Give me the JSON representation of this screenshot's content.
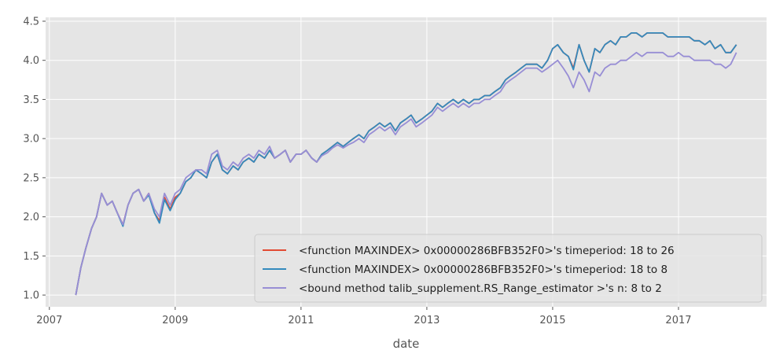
{
  "chart_data": {
    "type": "line",
    "title": "",
    "xlabel": "date",
    "ylabel": "",
    "xlim": [
      2006.94,
      2018.4
    ],
    "ylim": [
      0.85,
      4.55
    ],
    "x_ticks": [
      2007,
      2009,
      2011,
      2013,
      2015,
      2017
    ],
    "x_tick_labels": [
      "2007",
      "2009",
      "2011",
      "2013",
      "2015",
      "2017"
    ],
    "y_ticks": [
      1.0,
      1.5,
      2.0,
      2.5,
      3.0,
      3.5,
      4.0,
      4.5
    ],
    "y_tick_labels": [
      "1.0",
      "1.5",
      "2.0",
      "2.5",
      "3.0",
      "3.5",
      "4.0",
      "4.5"
    ],
    "grid": true,
    "legend_position": "bottom-right",
    "background": "#e5e5e5",
    "series": [
      {
        "name": "<function MAXINDEX> 0x00000286BFB352F0>'s timeperiod: 18 to 26",
        "color": "#e24a33",
        "x": [
          2007.42,
          2007.5,
          2007.58,
          2007.67,
          2007.75,
          2007.83,
          2007.92,
          2008.0,
          2008.08,
          2008.17,
          2008.25,
          2008.33,
          2008.42,
          2008.5,
          2008.58,
          2008.67,
          2008.75,
          2008.83,
          2008.92,
          2009.0,
          2009.08,
          2009.17,
          2009.25,
          2009.33,
          2009.42,
          2009.5,
          2009.58,
          2009.67,
          2009.75,
          2009.83,
          2009.92,
          2010.0,
          2010.08,
          2010.17,
          2010.25,
          2010.33,
          2010.42,
          2010.5,
          2010.58,
          2010.67,
          2010.75,
          2010.83,
          2010.92,
          2011.0,
          2011.08,
          2011.17,
          2011.25,
          2011.33,
          2011.42,
          2011.5,
          2011.58,
          2011.67,
          2011.75,
          2011.83,
          2011.92,
          2012.0,
          2012.08,
          2012.17,
          2012.25,
          2012.33,
          2012.42,
          2012.5,
          2012.58,
          2012.67,
          2012.75,
          2012.83,
          2012.92,
          2013.0,
          2013.08,
          2013.17,
          2013.25,
          2013.33,
          2013.42,
          2013.5,
          2013.58,
          2013.67,
          2013.75,
          2013.83,
          2013.92,
          2014.0,
          2014.08,
          2014.17,
          2014.25,
          2014.33,
          2014.42,
          2014.5,
          2014.58,
          2014.67,
          2014.75,
          2014.83,
          2014.92,
          2015.0,
          2015.08,
          2015.17,
          2015.25,
          2015.33,
          2015.42,
          2015.5,
          2015.58,
          2015.67,
          2015.75,
          2015.83,
          2015.92,
          2016.0,
          2016.08,
          2016.17,
          2016.25,
          2016.33,
          2016.42,
          2016.5,
          2016.58,
          2016.67,
          2016.75,
          2016.83,
          2016.92,
          2017.0,
          2017.08,
          2017.17,
          2017.25,
          2017.33,
          2017.42,
          2017.5,
          2017.58,
          2017.67,
          2017.75,
          2017.83,
          2017.92
        ],
        "y": [
          1.0,
          1.35,
          1.6,
          1.85,
          2.0,
          2.3,
          2.15,
          2.2,
          2.05,
          1.9,
          2.15,
          2.3,
          2.35,
          2.2,
          2.3,
          2.05,
          1.95,
          2.25,
          2.1,
          2.25,
          2.3,
          2.45,
          2.5,
          2.6,
          2.55,
          2.5,
          2.7,
          2.8,
          2.6,
          2.55,
          2.65,
          2.6,
          2.7,
          2.75,
          2.7,
          2.8,
          2.75,
          2.85,
          2.75,
          2.8,
          2.85,
          2.7,
          2.8,
          2.8,
          2.85,
          2.75,
          2.7,
          2.8,
          2.85,
          2.9,
          2.95,
          2.9,
          2.95,
          3.0,
          3.05,
          3.0,
          3.1,
          3.15,
          3.2,
          3.15,
          3.2,
          3.1,
          3.2,
          3.25,
          3.3,
          3.2,
          3.25,
          3.3,
          3.35,
          3.45,
          3.4,
          3.45,
          3.5,
          3.45,
          3.5,
          3.45,
          3.5,
          3.5,
          3.55,
          3.55,
          3.6,
          3.65,
          3.75,
          3.8,
          3.85,
          3.9,
          3.95,
          3.95,
          3.95,
          3.9,
          4.0,
          4.15,
          4.2,
          4.1,
          4.05,
          3.9,
          4.2,
          4.0,
          3.85,
          4.15,
          4.1,
          4.2,
          4.25,
          4.2,
          4.3,
          4.3,
          4.35,
          4.35,
          4.3,
          4.35,
          4.35,
          4.35,
          4.35,
          4.3,
          4.3,
          4.3,
          4.3,
          4.3,
          4.25,
          4.25,
          4.2,
          4.25,
          4.15,
          4.2,
          4.1,
          4.1,
          4.2
        ]
      },
      {
        "name": "<function MAXINDEX> 0x00000286BFB352F0>'s timeperiod: 18 to 8",
        "color": "#348abd",
        "x": [
          2007.42,
          2007.5,
          2007.58,
          2007.67,
          2007.75,
          2007.83,
          2007.92,
          2008.0,
          2008.08,
          2008.17,
          2008.25,
          2008.33,
          2008.42,
          2008.5,
          2008.58,
          2008.67,
          2008.75,
          2008.83,
          2008.92,
          2009.0,
          2009.08,
          2009.17,
          2009.25,
          2009.33,
          2009.42,
          2009.5,
          2009.58,
          2009.67,
          2009.75,
          2009.83,
          2009.92,
          2010.0,
          2010.08,
          2010.17,
          2010.25,
          2010.33,
          2010.42,
          2010.5,
          2010.58,
          2010.67,
          2010.75,
          2010.83,
          2010.92,
          2011.0,
          2011.08,
          2011.17,
          2011.25,
          2011.33,
          2011.42,
          2011.5,
          2011.58,
          2011.67,
          2011.75,
          2011.83,
          2011.92,
          2012.0,
          2012.08,
          2012.17,
          2012.25,
          2012.33,
          2012.42,
          2012.5,
          2012.58,
          2012.67,
          2012.75,
          2012.83,
          2012.92,
          2013.0,
          2013.08,
          2013.17,
          2013.25,
          2013.33,
          2013.42,
          2013.5,
          2013.58,
          2013.67,
          2013.75,
          2013.83,
          2013.92,
          2014.0,
          2014.08,
          2014.17,
          2014.25,
          2014.33,
          2014.42,
          2014.5,
          2014.58,
          2014.67,
          2014.75,
          2014.83,
          2014.92,
          2015.0,
          2015.08,
          2015.17,
          2015.25,
          2015.33,
          2015.42,
          2015.5,
          2015.58,
          2015.67,
          2015.75,
          2015.83,
          2015.92,
          2016.0,
          2016.08,
          2016.17,
          2016.25,
          2016.33,
          2016.42,
          2016.5,
          2016.58,
          2016.67,
          2016.75,
          2016.83,
          2016.92,
          2017.0,
          2017.08,
          2017.17,
          2017.25,
          2017.33,
          2017.42,
          2017.5,
          2017.58,
          2017.67,
          2017.75,
          2017.83,
          2017.92
        ],
        "y": [
          1.0,
          1.35,
          1.6,
          1.85,
          2.0,
          2.3,
          2.15,
          2.2,
          2.05,
          1.88,
          2.15,
          2.3,
          2.35,
          2.2,
          2.28,
          2.05,
          1.92,
          2.22,
          2.08,
          2.22,
          2.3,
          2.45,
          2.5,
          2.6,
          2.55,
          2.5,
          2.7,
          2.8,
          2.6,
          2.55,
          2.65,
          2.6,
          2.7,
          2.75,
          2.7,
          2.8,
          2.75,
          2.85,
          2.75,
          2.8,
          2.85,
          2.7,
          2.8,
          2.8,
          2.85,
          2.75,
          2.7,
          2.8,
          2.85,
          2.9,
          2.95,
          2.9,
          2.95,
          3.0,
          3.05,
          3.0,
          3.1,
          3.15,
          3.2,
          3.15,
          3.2,
          3.1,
          3.2,
          3.25,
          3.3,
          3.2,
          3.25,
          3.3,
          3.35,
          3.45,
          3.4,
          3.45,
          3.5,
          3.45,
          3.5,
          3.45,
          3.5,
          3.5,
          3.55,
          3.55,
          3.6,
          3.65,
          3.75,
          3.8,
          3.85,
          3.9,
          3.95,
          3.95,
          3.95,
          3.9,
          4.0,
          4.15,
          4.2,
          4.1,
          4.05,
          3.88,
          4.2,
          4.0,
          3.85,
          4.15,
          4.1,
          4.2,
          4.25,
          4.2,
          4.3,
          4.3,
          4.35,
          4.35,
          4.3,
          4.35,
          4.35,
          4.35,
          4.35,
          4.3,
          4.3,
          4.3,
          4.3,
          4.3,
          4.25,
          4.25,
          4.2,
          4.25,
          4.15,
          4.2,
          4.1,
          4.1,
          4.2
        ]
      },
      {
        "name": "<bound method talib_supplement.RS_Range_estimator >'s n: 8 to 2",
        "color": "#988ed5",
        "x": [
          2007.42,
          2007.5,
          2007.58,
          2007.67,
          2007.75,
          2007.83,
          2007.92,
          2008.0,
          2008.08,
          2008.17,
          2008.25,
          2008.33,
          2008.42,
          2008.5,
          2008.58,
          2008.67,
          2008.75,
          2008.83,
          2008.92,
          2009.0,
          2009.08,
          2009.17,
          2009.25,
          2009.33,
          2009.42,
          2009.5,
          2009.58,
          2009.67,
          2009.75,
          2009.83,
          2009.92,
          2010.0,
          2010.08,
          2010.17,
          2010.25,
          2010.33,
          2010.42,
          2010.5,
          2010.58,
          2010.67,
          2010.75,
          2010.83,
          2010.92,
          2011.0,
          2011.08,
          2011.17,
          2011.25,
          2011.33,
          2011.42,
          2011.5,
          2011.58,
          2011.67,
          2011.75,
          2011.83,
          2011.92,
          2012.0,
          2012.08,
          2012.17,
          2012.25,
          2012.33,
          2012.42,
          2012.5,
          2012.58,
          2012.67,
          2012.75,
          2012.83,
          2012.92,
          2013.0,
          2013.08,
          2013.17,
          2013.25,
          2013.33,
          2013.42,
          2013.5,
          2013.58,
          2013.67,
          2013.75,
          2013.83,
          2013.92,
          2014.0,
          2014.08,
          2014.17,
          2014.25,
          2014.33,
          2014.42,
          2014.5,
          2014.58,
          2014.67,
          2014.75,
          2014.83,
          2014.92,
          2015.0,
          2015.08,
          2015.17,
          2015.25,
          2015.33,
          2015.42,
          2015.5,
          2015.58,
          2015.67,
          2015.75,
          2015.83,
          2015.92,
          2016.0,
          2016.08,
          2016.17,
          2016.25,
          2016.33,
          2016.42,
          2016.5,
          2016.58,
          2016.67,
          2016.75,
          2016.83,
          2016.92,
          2017.0,
          2017.08,
          2017.17,
          2017.25,
          2017.33,
          2017.42,
          2017.5,
          2017.58,
          2017.67,
          2017.75,
          2017.83,
          2017.92
        ],
        "y": [
          1.0,
          1.35,
          1.6,
          1.85,
          2.0,
          2.3,
          2.15,
          2.2,
          2.05,
          1.9,
          2.15,
          2.3,
          2.35,
          2.2,
          2.3,
          2.1,
          2.0,
          2.3,
          2.15,
          2.3,
          2.35,
          2.5,
          2.55,
          2.6,
          2.6,
          2.55,
          2.8,
          2.85,
          2.65,
          2.6,
          2.7,
          2.65,
          2.75,
          2.8,
          2.75,
          2.85,
          2.8,
          2.9,
          2.75,
          2.8,
          2.85,
          2.7,
          2.8,
          2.8,
          2.85,
          2.75,
          2.7,
          2.78,
          2.82,
          2.88,
          2.92,
          2.88,
          2.92,
          2.95,
          3.0,
          2.95,
          3.05,
          3.1,
          3.15,
          3.1,
          3.15,
          3.05,
          3.15,
          3.2,
          3.25,
          3.15,
          3.2,
          3.25,
          3.3,
          3.4,
          3.35,
          3.4,
          3.45,
          3.4,
          3.45,
          3.4,
          3.45,
          3.45,
          3.5,
          3.5,
          3.55,
          3.6,
          3.7,
          3.75,
          3.8,
          3.85,
          3.9,
          3.9,
          3.9,
          3.85,
          3.9,
          3.95,
          4.0,
          3.9,
          3.8,
          3.65,
          3.85,
          3.75,
          3.6,
          3.85,
          3.8,
          3.9,
          3.95,
          3.95,
          4.0,
          4.0,
          4.05,
          4.1,
          4.05,
          4.1,
          4.1,
          4.1,
          4.1,
          4.05,
          4.05,
          4.1,
          4.05,
          4.05,
          4.0,
          4.0,
          4.0,
          4.0,
          3.95,
          3.95,
          3.9,
          3.95,
          4.1
        ]
      }
    ]
  }
}
